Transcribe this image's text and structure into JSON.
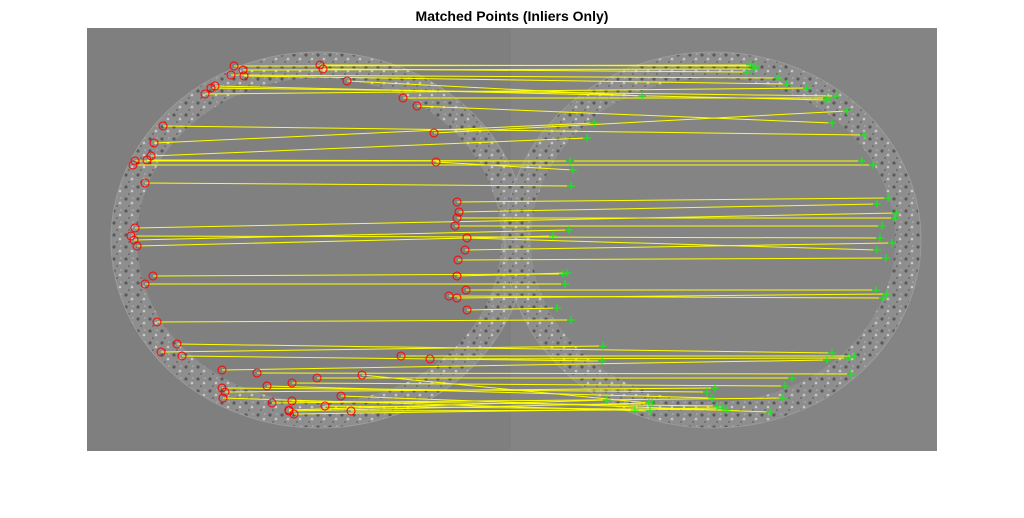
{
  "title": "Matched Points (Inliers Only)",
  "colors": {
    "background": "#808080",
    "ring": "#8d8d8d",
    "ring_texture_dark": "#5a5a5a",
    "ring_texture_light": "#c8c8c8",
    "match_line": "#ffff00",
    "inlier_circle": "#ff0000",
    "matched_point_marker": "#00ff00"
  },
  "marker_icons": [
    "red-circle-icon",
    "green-plus-icon"
  ]
}
